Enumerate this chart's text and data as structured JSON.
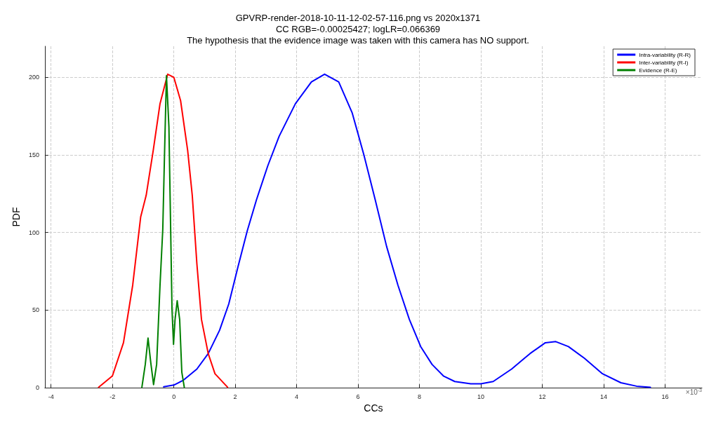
{
  "chart_data": {
    "type": "line",
    "title": "GPVRP-render-2018-10-11-12-02-57-116.png vs 2020x1371\nCC RGB=-0.00025427; logLR=0.066369\nThe hypothesis that the evidence image was taken with this camera has NO support.",
    "xlabel": "CCs",
    "ylabel": "PDF",
    "annotations": [
      "×10$^{-3}$"
    ],
    "xlim": [
      -4.2,
      17.2
    ],
    "xticks": [
      -4,
      -2,
      0,
      2,
      4,
      6,
      8,
      10,
      12,
      14,
      16
    ],
    "ylim": [
      0,
      220
    ],
    "yticks": [
      0,
      50,
      100,
      150,
      200
    ],
    "grid": true,
    "legend": "top right",
    "marker": "none",
    "line_style": "solid",
    "series": [
      {
        "name": "Intra-variability (R-R)",
        "color": "#0000ff",
        "x": [
          -0.33,
          0,
          0.3,
          0.75,
          1.12,
          1.49,
          1.79,
          2.09,
          2.39,
          2.69,
          3.06,
          3.43,
          3.96,
          4.48,
          4.91,
          5.37,
          5.81,
          6.19,
          6.56,
          6.93,
          7.3,
          7.67,
          8.04,
          8.41,
          8.78,
          9.15,
          9.67,
          10,
          10.4,
          11,
          11.6,
          12.1,
          12.44,
          12.85,
          13.37,
          13.96,
          14.56,
          15.07,
          15.52
        ],
        "values": [
          0.6,
          1.7,
          4.7,
          12,
          22,
          37,
          54,
          78,
          101,
          121,
          143,
          162,
          183,
          197,
          202,
          197,
          177,
          150,
          121,
          91,
          66,
          44,
          26.5,
          15,
          7.6,
          4,
          2.5,
          2.5,
          4,
          12,
          22,
          29,
          29.7,
          26.5,
          19,
          9,
          3.2,
          1,
          0.3
        ]
      },
      {
        "name": "Inter-variability (R-I)",
        "color": "#ff0000",
        "x": [
          -2.45,
          -2,
          -1.64,
          -1.34,
          -1.08,
          -0.9,
          -0.67,
          -0.45,
          -0.2,
          0,
          0.22,
          0.45,
          0.6,
          0.75,
          0.9,
          1.12,
          1.34,
          1.75
        ],
        "values": [
          0.3,
          7.6,
          29,
          66,
          110,
          124,
          153,
          183,
          202,
          200,
          185,
          153,
          124,
          80,
          44,
          22,
          9,
          0.3
        ]
      },
      {
        "name": "Evidence (R-E)",
        "color": "#008000",
        "x": [
          -1.04,
          -0.93,
          -0.84,
          -0.75,
          -0.66,
          -0.56,
          -0.45,
          -0.36,
          -0.3,
          -0.24,
          -0.16,
          -0.11,
          -0.06,
          -0.01,
          0.04,
          0.11,
          0.19,
          0.26,
          0.34
        ],
        "values": [
          0.3,
          15,
          32,
          16,
          2,
          15,
          66,
          102,
          153,
          201,
          168,
          110,
          51,
          28,
          44,
          56,
          44,
          10,
          0.3
        ]
      }
    ]
  }
}
